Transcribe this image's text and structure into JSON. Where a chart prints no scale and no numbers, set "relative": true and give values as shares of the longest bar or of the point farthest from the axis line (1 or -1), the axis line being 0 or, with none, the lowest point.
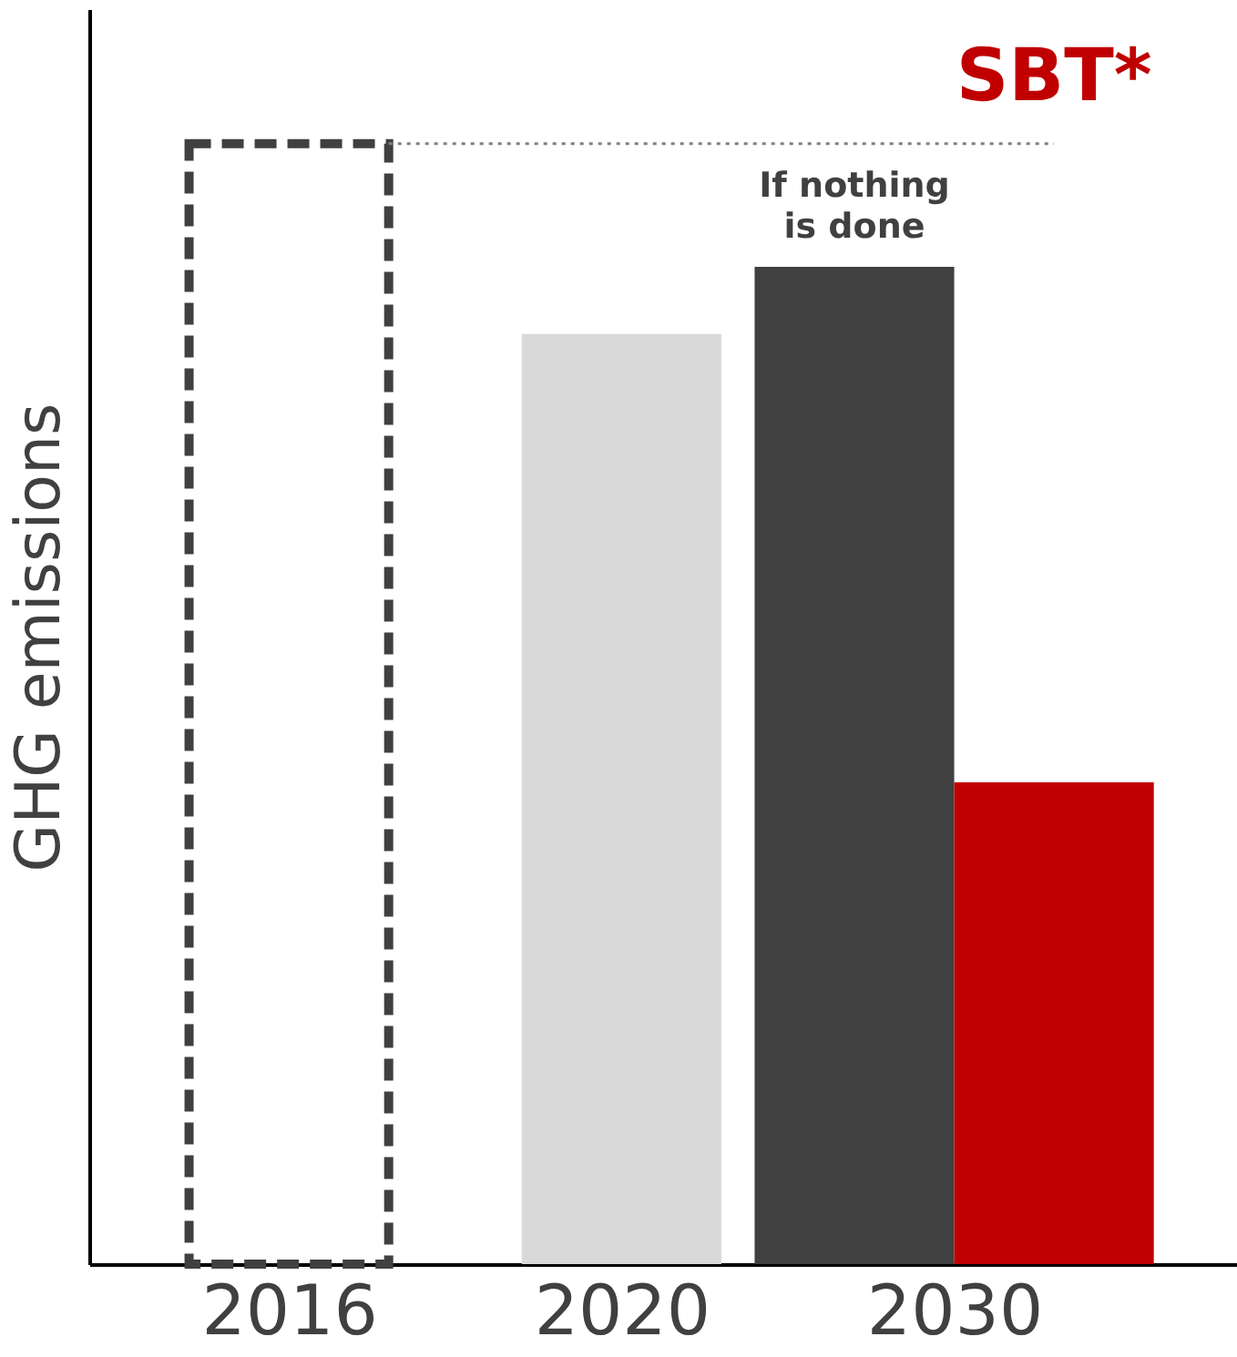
{
  "chart_data": {
    "type": "bar",
    "relative": true,
    "ylabel": "GHG emissions",
    "categories": [
      "2016",
      "2020",
      "2030"
    ],
    "grid": false,
    "series": [
      {
        "values": [
          1,
          null,
          null
        ],
        "color": "#404040",
        "line_style": "dashed"
      },
      {
        "values": [
          null,
          0.83,
          null
        ],
        "color": "#d9d9d9"
      },
      {
        "name": "If nothing is done",
        "values": [
          null,
          null,
          0.89
        ],
        "color": "#404040"
      },
      {
        "name": "SBT*",
        "values": [
          null,
          null,
          0.43
        ],
        "color": "#c00000"
      }
    ],
    "ref_lines": [
      {
        "axis": "y",
        "value": 1,
        "color": "#808080",
        "line_style": "dotted"
      }
    ]
  }
}
